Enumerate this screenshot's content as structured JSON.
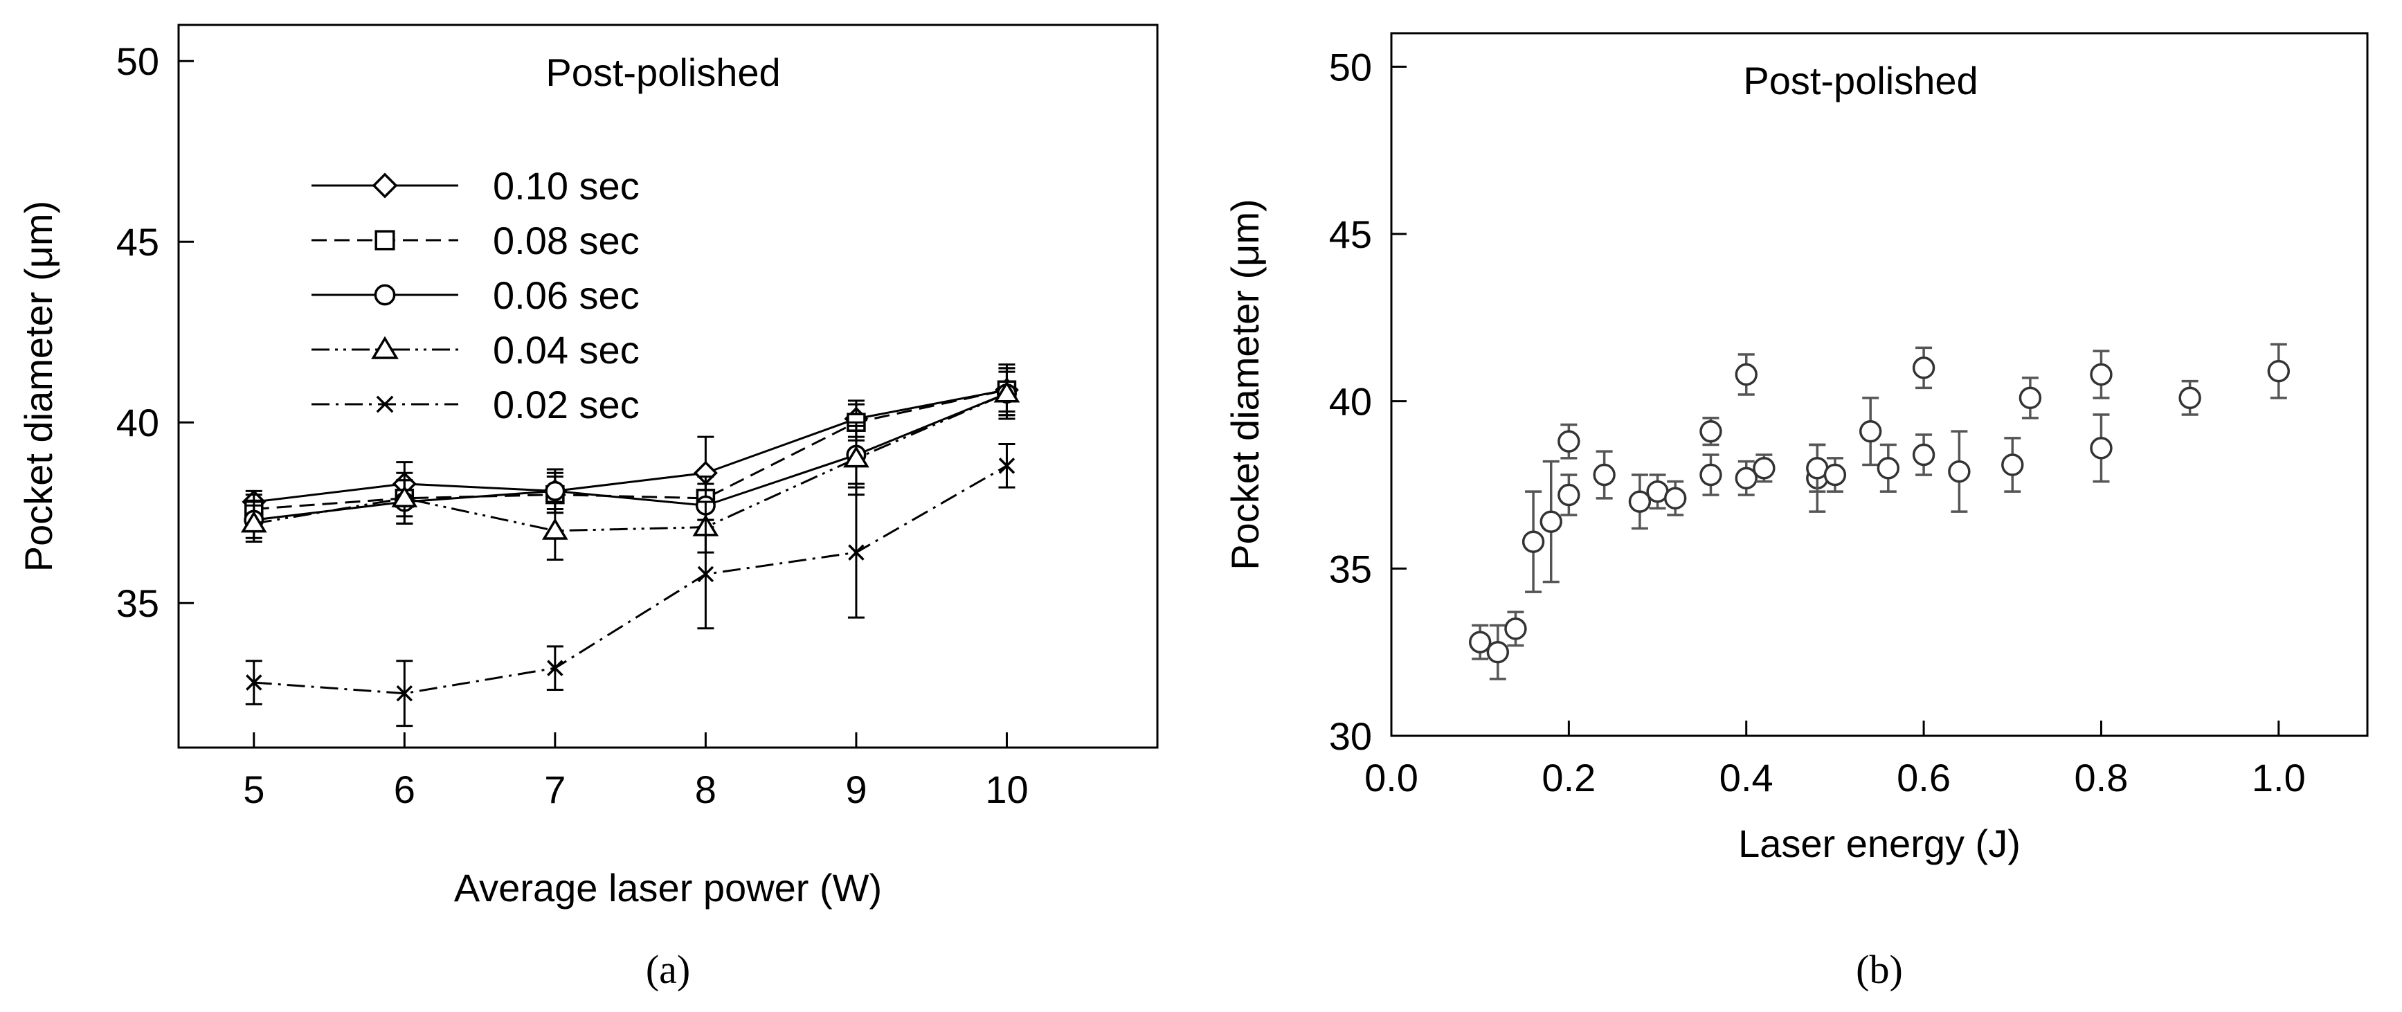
{
  "chart_data": [
    {
      "type": "line",
      "panel_label": "(a)",
      "title": "Post-polished",
      "xlabel": "Average laser power (W)",
      "ylabel": "Pocket diameter (μm)",
      "xlim": [
        4.5,
        11.0
      ],
      "ylim": [
        31,
        51
      ],
      "xticks": [
        "5",
        "6",
        "7",
        "8",
        "9",
        "10"
      ],
      "yticks": [
        "35",
        "40",
        "45",
        "50"
      ],
      "x": [
        5,
        6,
        7,
        8,
        9,
        10
      ],
      "legend_position": "top-left",
      "series": [
        {
          "name": "0.10 sec",
          "marker": "diamond",
          "dash": "solid",
          "values": [
            37.8,
            38.3,
            38.1,
            38.6,
            40.1,
            40.9
          ],
          "errors": [
            0.3,
            0.6,
            0.6,
            1.0,
            0.5,
            0.7
          ]
        },
        {
          "name": "0.08 sec",
          "marker": "square",
          "dash": "dashed",
          "values": [
            37.6,
            37.9,
            38.0,
            37.9,
            40.0,
            40.9
          ],
          "errors": [
            0.4,
            0.5,
            0.5,
            0.6,
            0.5,
            0.6
          ]
        },
        {
          "name": "0.06 sec",
          "marker": "circle",
          "dash": "solid",
          "values": [
            37.3,
            37.8,
            38.1,
            37.7,
            39.1,
            40.8
          ],
          "errors": [
            0.5,
            0.6,
            0.5,
            0.6,
            0.8,
            0.7
          ]
        },
        {
          "name": "0.04 sec",
          "marker": "triangle",
          "dash": "dashdotdot",
          "values": [
            37.2,
            37.9,
            37.0,
            37.1,
            39.0,
            40.8
          ],
          "errors": [
            0.5,
            0.7,
            0.8,
            0.7,
            1.0,
            0.6
          ]
        },
        {
          "name": "0.02 sec",
          "marker": "x",
          "dash": "dashdot",
          "values": [
            32.8,
            32.5,
            33.2,
            35.8,
            36.4,
            38.8
          ],
          "errors": [
            0.6,
            0.9,
            0.6,
            1.5,
            1.8,
            0.6
          ]
        }
      ]
    },
    {
      "type": "scatter",
      "panel_label": "(b)",
      "title": "Post-polished",
      "xlabel": "Laser energy (J)",
      "ylabel": "Pocket diameter (μm)",
      "xlim": [
        0.0,
        1.1
      ],
      "ylim": [
        30,
        51
      ],
      "xticks": [
        "0.0",
        "0.2",
        "0.4",
        "0.6",
        "0.8",
        "1.0"
      ],
      "yticks": [
        "30",
        "35",
        "40",
        "45",
        "50"
      ],
      "points": [
        {
          "x": 0.1,
          "y": 32.8,
          "err": 0.5
        },
        {
          "x": 0.12,
          "y": 32.5,
          "err": 0.8
        },
        {
          "x": 0.14,
          "y": 33.2,
          "err": 0.5
        },
        {
          "x": 0.16,
          "y": 35.8,
          "err": 1.5
        },
        {
          "x": 0.18,
          "y": 36.4,
          "err": 1.8
        },
        {
          "x": 0.2,
          "y": 37.2,
          "err": 0.6
        },
        {
          "x": 0.2,
          "y": 38.8,
          "err": 0.5
        },
        {
          "x": 0.24,
          "y": 37.8,
          "err": 0.7
        },
        {
          "x": 0.28,
          "y": 37.0,
          "err": 0.8
        },
        {
          "x": 0.3,
          "y": 37.3,
          "err": 0.5
        },
        {
          "x": 0.32,
          "y": 37.1,
          "err": 0.5
        },
        {
          "x": 0.36,
          "y": 37.8,
          "err": 0.6
        },
        {
          "x": 0.36,
          "y": 39.1,
          "err": 0.4
        },
        {
          "x": 0.4,
          "y": 37.7,
          "err": 0.5
        },
        {
          "x": 0.4,
          "y": 40.8,
          "err": 0.6
        },
        {
          "x": 0.42,
          "y": 38.0,
          "err": 0.4
        },
        {
          "x": 0.48,
          "y": 37.7,
          "err": 1.0
        },
        {
          "x": 0.48,
          "y": 38.0,
          "err": 0.7
        },
        {
          "x": 0.5,
          "y": 37.8,
          "err": 0.5
        },
        {
          "x": 0.54,
          "y": 39.1,
          "err": 1.0
        },
        {
          "x": 0.56,
          "y": 38.0,
          "err": 0.7
        },
        {
          "x": 0.6,
          "y": 38.4,
          "err": 0.6
        },
        {
          "x": 0.6,
          "y": 41.0,
          "err": 0.6
        },
        {
          "x": 0.64,
          "y": 37.9,
          "err": 1.2
        },
        {
          "x": 0.7,
          "y": 38.1,
          "err": 0.8
        },
        {
          "x": 0.72,
          "y": 40.1,
          "err": 0.6
        },
        {
          "x": 0.8,
          "y": 38.6,
          "err": 1.0
        },
        {
          "x": 0.8,
          "y": 40.8,
          "err": 0.7
        },
        {
          "x": 0.9,
          "y": 40.1,
          "err": 0.5
        },
        {
          "x": 1.0,
          "y": 40.9,
          "err": 0.8
        }
      ]
    }
  ]
}
